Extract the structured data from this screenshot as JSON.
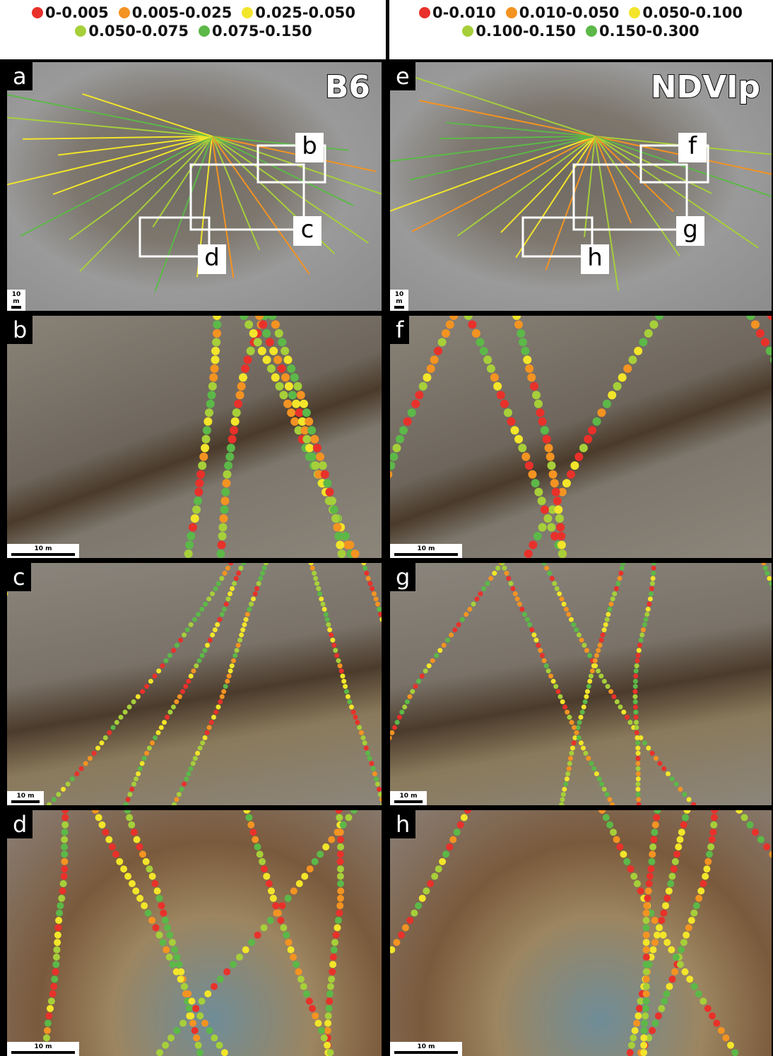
{
  "legends": [
    {
      "items": [
        {
          "label": "0-0.005",
          "color": "#e8312a"
        },
        {
          "label": "0.005-0.025",
          "color": "#f39322"
        },
        {
          "label": "0.025-0.050",
          "color": "#f2e52a"
        },
        {
          "label": "0.050-0.075",
          "color": "#a6cf3a"
        },
        {
          "label": "0.075-0.150",
          "color": "#5cb848"
        }
      ]
    },
    {
      "items": [
        {
          "label": "0-0.010",
          "color": "#e8312a"
        },
        {
          "label": "0.010-0.050",
          "color": "#f39322"
        },
        {
          "label": "0.050-0.100",
          "color": "#f2e52a"
        },
        {
          "label": "0.100-0.150",
          "color": "#a6cf3a"
        },
        {
          "label": "0.150-0.300",
          "color": "#5cb848"
        }
      ]
    }
  ],
  "panels": [
    {
      "label": "a",
      "title": "B6",
      "scale": "10 m",
      "boxes": [
        "b",
        "c",
        "d"
      ]
    },
    {
      "label": "b",
      "scale": "10 m"
    },
    {
      "label": "c",
      "scale": "10 m"
    },
    {
      "label": "d",
      "scale": "10 m"
    },
    {
      "label": "e",
      "title": "NDVIp",
      "scale": "10 m",
      "boxes": [
        "f",
        "g",
        "h"
      ]
    },
    {
      "label": "f",
      "scale": "10 m"
    },
    {
      "label": "g",
      "scale": "10 m"
    },
    {
      "label": "h",
      "scale": "10 m"
    }
  ]
}
